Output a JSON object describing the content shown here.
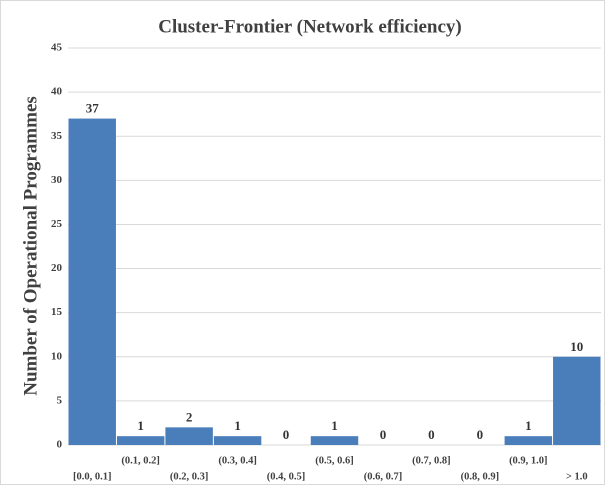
{
  "chart_data": {
    "type": "bar",
    "title": "Cluster-Frontier (Network efficiency)",
    "y_label": "Number of Operational Programmes",
    "categories": [
      "[0.0, 0.1]",
      "(0.1, 0.2]",
      "(0.2, 0.3]",
      "(0.3, 0.4]",
      "(0.4, 0.5]",
      "(0.5, 0.6]",
      "(0.6, 0.7]",
      "(0.7, 0.8]",
      "(0.8, 0.9]",
      "(0.9, 1.0]",
      "> 1.0"
    ],
    "values": [
      37,
      1,
      2,
      1,
      0,
      1,
      0,
      0,
      0,
      1,
      10
    ],
    "color": "#4a7ebb",
    "ylim": [
      0,
      45
    ],
    "yticks": [
      0,
      5,
      10,
      15,
      20,
      25,
      30,
      35,
      40,
      45
    ],
    "grid": true
  }
}
